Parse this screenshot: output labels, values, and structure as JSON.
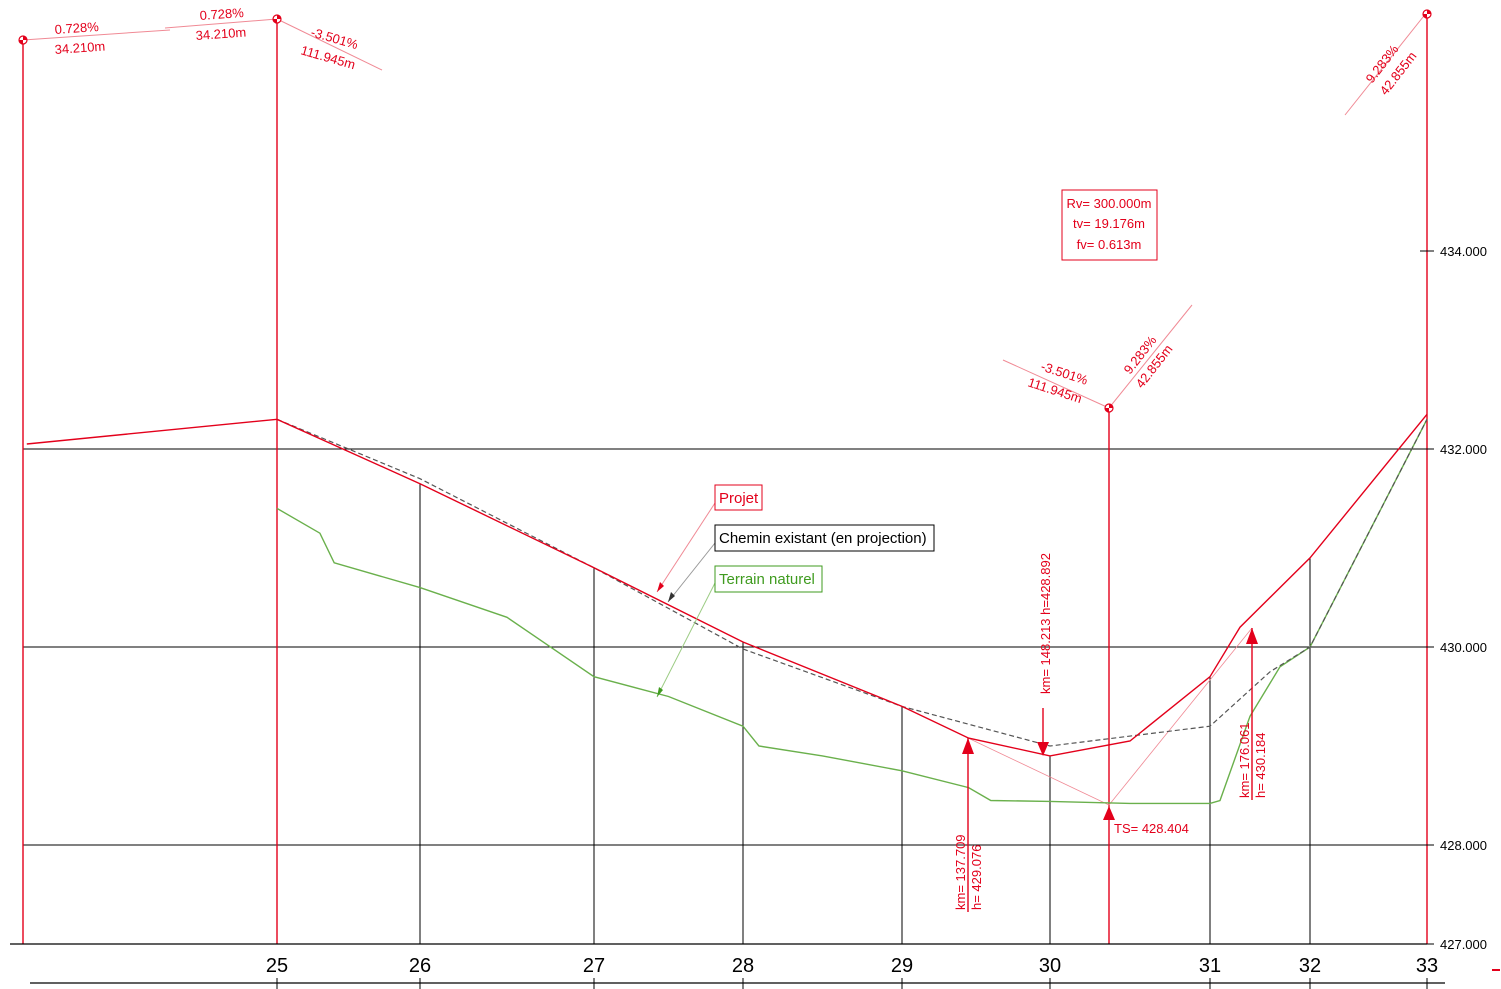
{
  "colors": {
    "project": "#e3001b",
    "terrain": "#6ab04c",
    "existing": "#555555",
    "grid": "#000000"
  },
  "grid": {
    "elevation_labels": [
      "434.000",
      "432.000",
      "430.000",
      "428.000",
      "427.000"
    ],
    "station_labels": [
      "25",
      "26",
      "27",
      "28",
      "29",
      "30",
      "31",
      "32",
      "33"
    ]
  },
  "legend": {
    "project": "Projet",
    "existing": "Chemin existant (en projection)",
    "terrain": "Terrain naturel"
  },
  "curve_box": {
    "rv": "Rv= 300.000m",
    "tv": "tv= 19.176m",
    "fv": "fv= 0.613m"
  },
  "slopes": {
    "s1": {
      "grade": "0.728%",
      "length": "34.210m"
    },
    "s2": {
      "grade": "0.728%",
      "length": "34.210m"
    },
    "s3": {
      "grade": "-3.501%",
      "length": "111.945m"
    },
    "s4": {
      "grade": "9.283%",
      "length": "42.855m"
    },
    "s5": {
      "grade": "-3.501%",
      "length": "111.945m"
    },
    "s6": {
      "grade": "9.283%",
      "length": "42.855m"
    }
  },
  "points": {
    "low": "km= 148.213 h=428.892",
    "ts": "TS= 428.404",
    "tc1_km": "km= 137.709",
    "tc1_h": "h= 429.076",
    "tc2_km": "km= 176.061",
    "tc2_h": "h= 430.184"
  },
  "chart_data": {
    "type": "line",
    "x": [
      25,
      26,
      27,
      28,
      29,
      30,
      31,
      32,
      33
    ],
    "ylim": [
      427.0,
      435.0
    ],
    "series": [
      {
        "name": "Projet",
        "points": [
          [
            23.25,
            432.05
          ],
          [
            25,
            432.3
          ],
          [
            26,
            431.65
          ],
          [
            27,
            430.8
          ],
          [
            28,
            430.05
          ],
          [
            29,
            429.4
          ],
          [
            29.45,
            429.08
          ],
          [
            30,
            428.9
          ],
          [
            30.5,
            429.05
          ],
          [
            31,
            429.7
          ],
          [
            31.3,
            430.2
          ],
          [
            32,
            430.9
          ],
          [
            33,
            432.35
          ]
        ]
      },
      {
        "name": "Chemin existant (en projection)",
        "points": [
          [
            25,
            432.3
          ],
          [
            26,
            431.7
          ],
          [
            27,
            430.8
          ],
          [
            28,
            429.98
          ],
          [
            29,
            429.4
          ],
          [
            30,
            429.0
          ],
          [
            31,
            429.2
          ],
          [
            31.6,
            429.75
          ],
          [
            32,
            430.0
          ],
          [
            33,
            432.3
          ]
        ]
      },
      {
        "name": "Terrain naturel",
        "points": [
          [
            25,
            431.4
          ],
          [
            25.3,
            431.15
          ],
          [
            25.4,
            430.85
          ],
          [
            26,
            430.6
          ],
          [
            26.5,
            430.3
          ],
          [
            27,
            429.7
          ],
          [
            27.5,
            429.5
          ],
          [
            28,
            429.2
          ],
          [
            28.1,
            429.0
          ],
          [
            28.5,
            428.9
          ],
          [
            29,
            428.75
          ],
          [
            29.45,
            428.58
          ],
          [
            29.6,
            428.45
          ],
          [
            30,
            428.44
          ],
          [
            30.5,
            428.42
          ],
          [
            31,
            428.42
          ],
          [
            31.1,
            428.45
          ],
          [
            31.4,
            429.3
          ],
          [
            31.7,
            429.8
          ],
          [
            32,
            430.0
          ],
          [
            33,
            432.3
          ]
        ]
      }
    ]
  }
}
